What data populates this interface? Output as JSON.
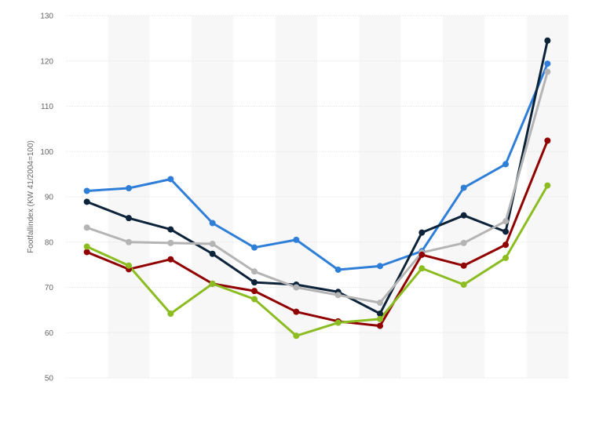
{
  "chart_data": {
    "type": "line",
    "title": "",
    "xlabel": "",
    "ylabel": "Footfallindex (KW 41/2004=100)",
    "ylim": [
      50,
      130
    ],
    "yticks": [
      50,
      60,
      70,
      80,
      90,
      100,
      110,
      120,
      130
    ],
    "x": [
      1,
      2,
      3,
      4,
      5,
      6,
      7,
      8,
      9,
      10,
      11,
      12
    ],
    "grid": true,
    "legend": "none",
    "series": [
      {
        "color": "#2f7ed8",
        "values": [
          91.3,
          91.9,
          93.9,
          84.2,
          78.8,
          80.5,
          73.9,
          74.7,
          78.0,
          92.0,
          97.2,
          119.4
        ]
      },
      {
        "color": "#0d233a",
        "values": [
          88.9,
          85.3,
          82.8,
          77.4,
          71.1,
          70.6,
          69.0,
          64.2,
          82.1,
          85.9,
          82.3,
          124.5
        ]
      },
      {
        "color": "#b4b4b4",
        "values": [
          83.2,
          80.0,
          79.8,
          79.6,
          73.5,
          70.0,
          68.3,
          66.6,
          77.7,
          79.8,
          84.6,
          117.6
        ]
      },
      {
        "color": "#910000",
        "values": [
          77.8,
          74.0,
          76.2,
          70.8,
          69.2,
          64.6,
          62.5,
          61.5,
          77.2,
          74.8,
          79.4,
          102.4
        ]
      },
      {
        "color": "#8bbc21",
        "values": [
          79.0,
          74.8,
          64.2,
          70.8,
          67.4,
          59.3,
          62.2,
          63.0,
          74.2,
          70.6,
          76.5,
          92.5
        ]
      }
    ]
  }
}
